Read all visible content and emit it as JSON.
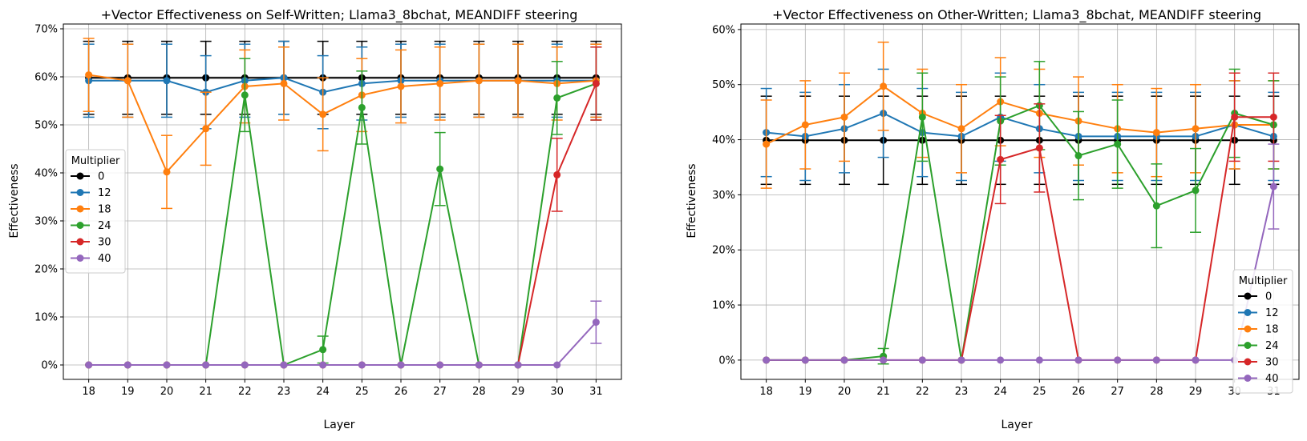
{
  "chart_data": [
    {
      "type": "line",
      "title": "+Vector Effectiveness on Self-Written; Llama3_8bchat, MEANDIFF steering",
      "xlabel": "Layer",
      "ylabel": "Effectiveness",
      "x": [
        18,
        19,
        20,
        21,
        22,
        23,
        24,
        25,
        26,
        27,
        28,
        29,
        30,
        31
      ],
      "ylim": [
        -3,
        71
      ],
      "yticks": [
        0,
        10,
        20,
        30,
        40,
        50,
        60,
        70
      ],
      "ytick_labels": [
        "0%",
        "10%",
        "20%",
        "30%",
        "40%",
        "50%",
        "60%",
        "70%"
      ],
      "grid": true,
      "legend": {
        "title": "Multiplier",
        "placement": "center-left"
      },
      "error_bars": true,
      "series": [
        {
          "name": "0",
          "color": "#000000",
          "values": [
            59.8,
            59.8,
            59.8,
            59.8,
            59.8,
            59.8,
            59.8,
            59.8,
            59.8,
            59.8,
            59.8,
            59.8,
            59.8,
            59.8
          ],
          "err": [
            7.6,
            7.6,
            7.6,
            7.6,
            7.6,
            7.6,
            7.6,
            7.6,
            7.6,
            7.6,
            7.6,
            7.6,
            7.6,
            7.6
          ]
        },
        {
          "name": "12",
          "color": "#1f77b4",
          "values": [
            59.2,
            59.2,
            59.2,
            56.8,
            59.2,
            59.8,
            56.8,
            58.6,
            59.2,
            59.2,
            59.2,
            59.2,
            59.2,
            59.2
          ],
          "err": [
            7.6,
            7.6,
            7.6,
            7.6,
            7.6,
            7.6,
            7.6,
            7.6,
            7.6,
            7.6,
            7.6,
            7.6,
            7.6,
            7.6
          ]
        },
        {
          "name": "18",
          "color": "#ff7f0e",
          "values": [
            60.4,
            59.2,
            40.2,
            49.2,
            58.0,
            58.6,
            52.2,
            56.2,
            58.0,
            58.6,
            59.2,
            59.2,
            58.6,
            59.2
          ],
          "err": [
            7.6,
            7.6,
            7.6,
            7.6,
            7.6,
            7.6,
            7.6,
            7.6,
            7.6,
            7.6,
            7.6,
            7.6,
            7.6,
            7.6
          ]
        },
        {
          "name": "24",
          "color": "#2ca02c",
          "values": [
            0,
            0,
            0,
            0,
            56.2,
            0,
            3.2,
            53.6,
            0,
            40.8,
            0,
            0,
            55.6,
            58.6
          ],
          "err": [
            0,
            0,
            0,
            0,
            7.6,
            0,
            2.8,
            7.6,
            0,
            7.6,
            0,
            0,
            7.6,
            7.6
          ]
        },
        {
          "name": "30",
          "color": "#d62728",
          "values": [
            0,
            0,
            0,
            0,
            0,
            0,
            0,
            0,
            0,
            0,
            0,
            0,
            39.6,
            58.6
          ],
          "err": [
            0,
            0,
            0,
            0,
            0,
            0,
            0,
            0,
            0,
            0,
            0,
            0,
            7.6,
            7.6
          ]
        },
        {
          "name": "40",
          "color": "#9467bd",
          "values": [
            0,
            0,
            0,
            0,
            0,
            0,
            0,
            0,
            0,
            0,
            0,
            0,
            0,
            8.9
          ],
          "err": [
            0,
            0,
            0,
            0,
            0,
            0,
            0,
            0,
            0,
            0,
            0,
            0,
            0,
            4.4
          ]
        }
      ]
    },
    {
      "type": "line",
      "title": "+Vector Effectiveness on Other-Written; Llama3_8bchat, MEANDIFF steering",
      "xlabel": "Layer",
      "ylabel": "Effectiveness",
      "x": [
        18,
        19,
        20,
        21,
        22,
        23,
        24,
        25,
        26,
        27,
        28,
        29,
        30,
        31
      ],
      "ylim": [
        -3.5,
        61
      ],
      "yticks": [
        0,
        10,
        20,
        30,
        40,
        50,
        60
      ],
      "ytick_labels": [
        "0%",
        "10%",
        "20%",
        "30%",
        "40%",
        "50%",
        "60%"
      ],
      "grid": true,
      "legend": {
        "title": "Multiplier",
        "placement": "bottom-right"
      },
      "error_bars": true,
      "series": [
        {
          "name": "0",
          "color": "#000000",
          "values": [
            39.9,
            39.9,
            39.9,
            39.9,
            39.9,
            39.9,
            39.9,
            39.9,
            39.9,
            39.9,
            39.9,
            39.9,
            39.9,
            39.9
          ],
          "err": [
            8.0,
            8.0,
            8.0,
            8.0,
            8.0,
            8.0,
            8.0,
            8.0,
            8.0,
            8.0,
            8.0,
            8.0,
            8.0,
            8.0
          ]
        },
        {
          "name": "12",
          "color": "#1f77b4",
          "values": [
            41.3,
            40.6,
            42.0,
            44.8,
            41.3,
            40.6,
            44.1,
            42.0,
            40.6,
            40.6,
            40.6,
            40.6,
            42.7,
            40.6
          ],
          "err": [
            8.0,
            8.0,
            8.0,
            8.0,
            8.0,
            8.0,
            8.0,
            8.0,
            8.0,
            8.0,
            8.0,
            8.0,
            8.0,
            8.0
          ]
        },
        {
          "name": "18",
          "color": "#ff7f0e",
          "values": [
            39.2,
            42.7,
            44.1,
            49.7,
            44.8,
            42.0,
            46.9,
            44.8,
            43.4,
            42.0,
            41.3,
            42.0,
            42.7,
            42.7
          ],
          "err": [
            8.0,
            8.0,
            8.0,
            8.0,
            8.0,
            8.0,
            8.0,
            8.0,
            8.0,
            8.0,
            8.0,
            8.0,
            8.0,
            8.0
          ]
        },
        {
          "name": "24",
          "color": "#2ca02c",
          "values": [
            0,
            0,
            0,
            0.7,
            44.1,
            0,
            43.4,
            46.2,
            37.1,
            39.2,
            28.0,
            30.8,
            44.8,
            42.7
          ],
          "err": [
            0,
            0,
            0,
            1.4,
            8.0,
            0,
            8.0,
            8.0,
            8.0,
            8.0,
            7.6,
            7.6,
            8.0,
            8.0
          ]
        },
        {
          "name": "30",
          "color": "#d62728",
          "values": [
            0,
            0,
            0,
            0,
            0,
            0,
            36.4,
            38.5,
            0,
            0,
            0,
            0,
            44.1,
            44.1
          ],
          "err": [
            0,
            0,
            0,
            0,
            0,
            0,
            8.0,
            8.0,
            0,
            0,
            0,
            0,
            8.0,
            8.0
          ]
        },
        {
          "name": "40",
          "color": "#9467bd",
          "values": [
            0,
            0,
            0,
            0,
            0,
            0,
            0,
            0,
            0,
            0,
            0,
            0,
            0,
            31.5
          ],
          "err": [
            0,
            0,
            0,
            0,
            0,
            0,
            0,
            0,
            0,
            0,
            0,
            0,
            0,
            7.7
          ]
        }
      ]
    }
  ]
}
